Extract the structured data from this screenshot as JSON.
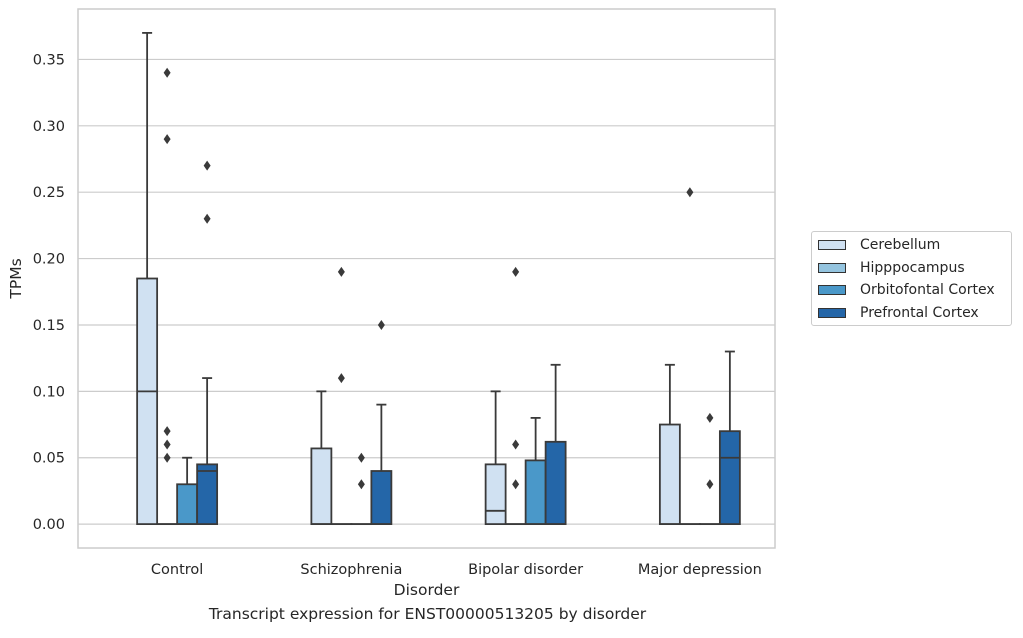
{
  "caption": "Transcript expression for ENST00000513205 by disorder",
  "legend": {
    "items": [
      {
        "label": "Cerebellum",
        "color": "#d0e1f2"
      },
      {
        "label": "Hipppocampus",
        "color": "#94c4df"
      },
      {
        "label": "Orbitofontal Cortex",
        "color": "#4a98c9"
      },
      {
        "label": "Prefrontal Cortex",
        "color": "#2466a8"
      }
    ]
  },
  "colors": {
    "grid": "#cccccc",
    "axes_frame": "#cccccc",
    "box_edge": "#3a3a3a"
  },
  "chart_data": {
    "type": "box",
    "xlabel": "Disorder",
    "ylabel": "TPMs",
    "ylim": [
      -0.018,
      0.388
    ],
    "yticks": [
      0.0,
      0.05,
      0.1,
      0.15,
      0.2,
      0.25,
      0.3,
      0.35
    ],
    "ytick_labels": [
      "0.00",
      "0.05",
      "0.10",
      "0.15",
      "0.20",
      "0.25",
      "0.30",
      "0.35"
    ],
    "grid": true,
    "legend_position": "right",
    "categories": [
      "Control",
      "Schizophrenia",
      "Bipolar disorder",
      "Major depression"
    ],
    "series": [
      {
        "name": "Cerebellum",
        "boxes": [
          {
            "q1": 0.0,
            "median": 0.1,
            "q3": 0.185,
            "whisker_low": 0.0,
            "whisker_high": 0.37,
            "outliers": []
          },
          {
            "q1": 0.0,
            "median": 0.0,
            "q3": 0.057,
            "whisker_low": 0.0,
            "whisker_high": 0.1,
            "outliers": []
          },
          {
            "q1": 0.0,
            "median": 0.01,
            "q3": 0.045,
            "whisker_low": 0.0,
            "whisker_high": 0.1,
            "outliers": []
          },
          {
            "q1": 0.0,
            "median": 0.0,
            "q3": 0.075,
            "whisker_low": 0.0,
            "whisker_high": 0.12,
            "outliers": []
          }
        ]
      },
      {
        "name": "Hipppocampus",
        "boxes": [
          {
            "q1": 0.0,
            "median": 0.0,
            "q3": 0.0,
            "whisker_low": 0.0,
            "whisker_high": 0.0,
            "outliers": [
              0.05,
              0.06,
              0.07,
              0.34,
              0.29
            ]
          },
          {
            "q1": 0.0,
            "median": 0.0,
            "q3": 0.0,
            "whisker_low": 0.0,
            "whisker_high": 0.0,
            "outliers": [
              0.19,
              0.11
            ]
          },
          {
            "q1": 0.0,
            "median": 0.0,
            "q3": 0.0,
            "whisker_low": 0.0,
            "whisker_high": 0.0,
            "outliers": [
              0.19,
              0.06,
              0.03
            ]
          },
          {
            "q1": 0.0,
            "median": 0.0,
            "q3": 0.0,
            "whisker_low": 0.0,
            "whisker_high": 0.0,
            "outliers": [
              0.25
            ]
          }
        ]
      },
      {
        "name": "Orbitofontal Cortex",
        "boxes": [
          {
            "q1": 0.0,
            "median": 0.0,
            "q3": 0.03,
            "whisker_low": 0.0,
            "whisker_high": 0.05,
            "outliers": []
          },
          {
            "q1": 0.0,
            "median": 0.0,
            "q3": 0.0,
            "whisker_low": 0.0,
            "whisker_high": 0.0,
            "outliers": [
              0.05,
              0.03
            ]
          },
          {
            "q1": 0.0,
            "median": 0.0,
            "q3": 0.048,
            "whisker_low": 0.0,
            "whisker_high": 0.08,
            "outliers": []
          },
          {
            "q1": 0.0,
            "median": 0.0,
            "q3": 0.0,
            "whisker_low": 0.0,
            "whisker_high": 0.0,
            "outliers": [
              0.08,
              0.03
            ]
          }
        ]
      },
      {
        "name": "Prefrontal Cortex",
        "boxes": [
          {
            "q1": 0.0,
            "median": 0.04,
            "q3": 0.045,
            "whisker_low": 0.0,
            "whisker_high": 0.11,
            "outliers": [
              0.27,
              0.23
            ]
          },
          {
            "q1": 0.0,
            "median": 0.0,
            "q3": 0.04,
            "whisker_low": 0.0,
            "whisker_high": 0.09,
            "outliers": [
              0.15
            ]
          },
          {
            "q1": 0.0,
            "median": 0.0,
            "q3": 0.062,
            "whisker_low": 0.0,
            "whisker_high": 0.12,
            "outliers": []
          },
          {
            "q1": 0.0,
            "median": 0.05,
            "q3": 0.07,
            "whisker_low": 0.0,
            "whisker_high": 0.13,
            "outliers": []
          }
        ]
      }
    ]
  }
}
